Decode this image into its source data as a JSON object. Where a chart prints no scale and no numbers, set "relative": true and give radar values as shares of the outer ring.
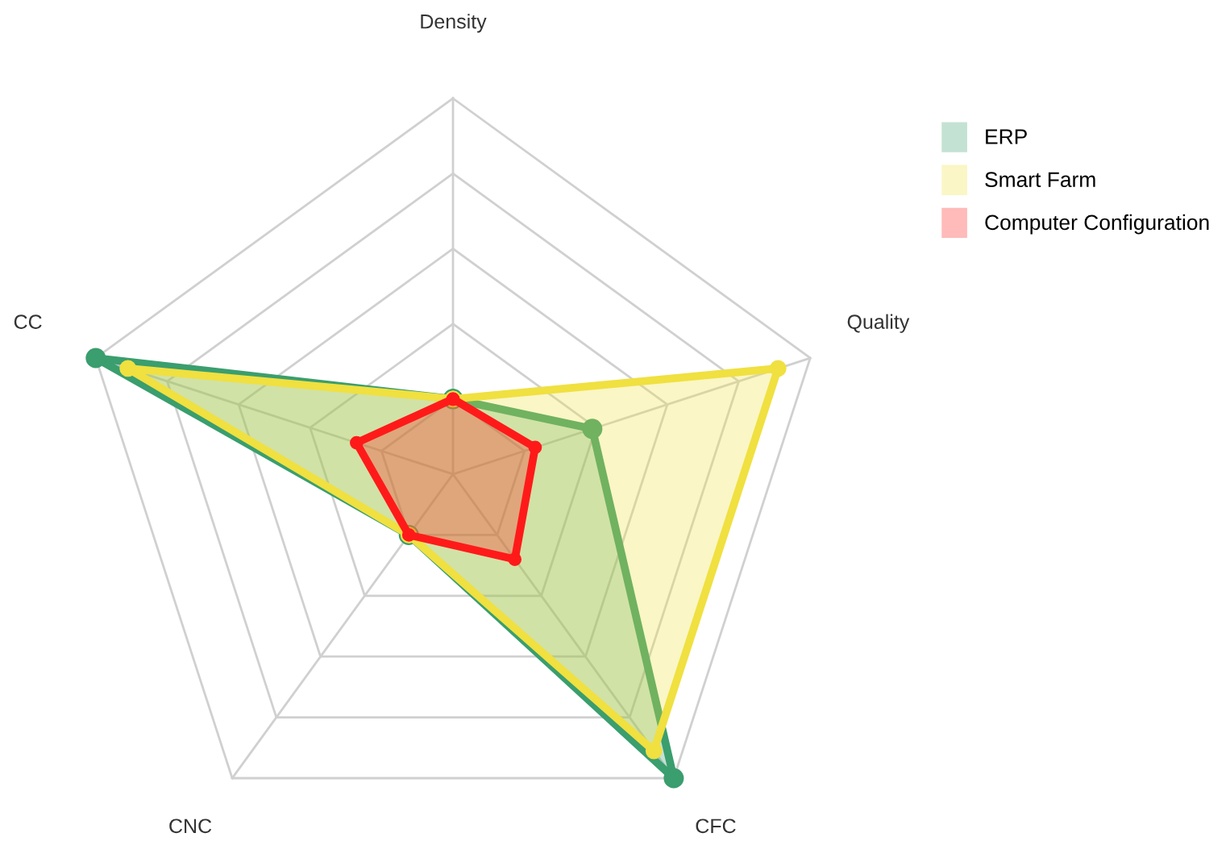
{
  "chart_data": {
    "type": "radar",
    "relative": true,
    "categories": [
      "Density",
      "Quality",
      "CFC",
      "CNC",
      "CC"
    ],
    "series": [
      {
        "name": "ERP",
        "color": "#3a9e6e",
        "values": [
          0.2,
          0.39,
          1.0,
          0.2,
          1.0
        ]
      },
      {
        "name": "Smart Farm",
        "color": "#f0e040",
        "values": [
          0.2,
          0.91,
          0.91,
          0.2,
          0.91
        ]
      },
      {
        "name": "Computer Configuration",
        "color": "#ff1a1a",
        "values": [
          0.2,
          0.23,
          0.28,
          0.2,
          0.27
        ]
      }
    ],
    "grid": true,
    "legend": "right",
    "marker": "circle",
    "line_style": "solid"
  }
}
